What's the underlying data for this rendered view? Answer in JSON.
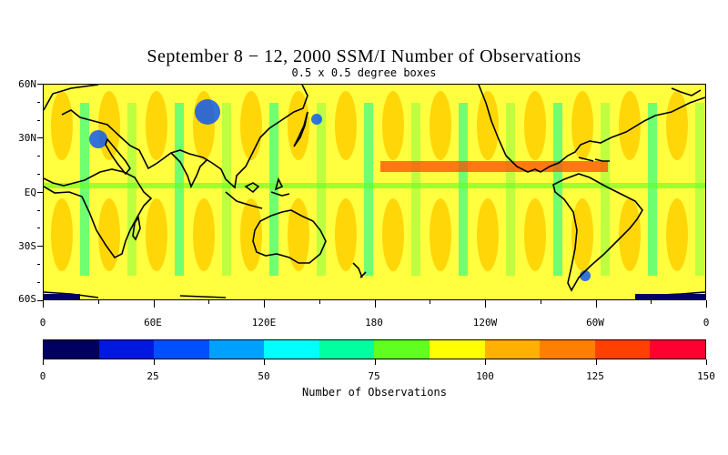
{
  "title": "September 8 − 12, 2000 SSM/I Number of Observations",
  "subtitle": "0.5 x 0.5 degree boxes",
  "y_axis": {
    "labels": [
      "60N",
      "30N",
      "EQ",
      "30S",
      "60S"
    ]
  },
  "x_axis": {
    "labels": [
      "0",
      "60E",
      "120E",
      "180",
      "120W",
      "60W",
      "0"
    ]
  },
  "colorbar": {
    "title": "Number of Observations",
    "labels": [
      "0",
      "25",
      "50",
      "75",
      "100",
      "125",
      "150"
    ],
    "colors": [
      "#000060",
      "#0018e0",
      "#0050ff",
      "#00a0ff",
      "#00ffff",
      "#00ffa0",
      "#60ff20",
      "#ffff00",
      "#ffb000",
      "#ff8000",
      "#ff4000",
      "#ff0030"
    ]
  },
  "map": {
    "background_color": "#ffff40",
    "ocean_colors": [
      "#ffd000",
      "#ffff40",
      "#a8ff40",
      "#40ff80"
    ],
    "coastline_color": "#000000"
  }
}
